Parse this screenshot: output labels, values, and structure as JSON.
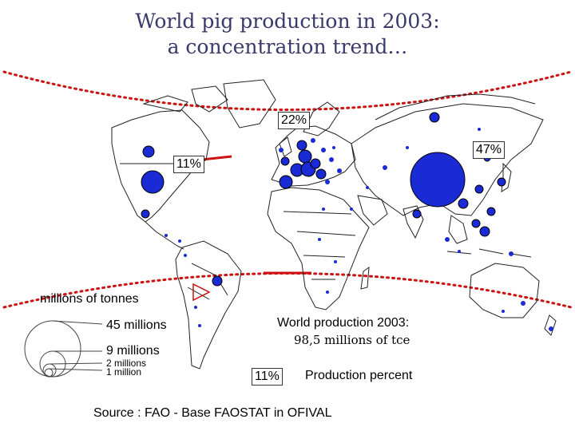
{
  "title_line1": "World pig production in 2003:",
  "title_line2": "a concentration trend…",
  "percent_labels": {
    "europe": "22%",
    "asia": "47%",
    "americas": "11%"
  },
  "legend": {
    "unit_label": "millions of tonnes",
    "size_45": "45 millions",
    "size_9": "9 millions",
    "size_2": "2 millions",
    "size_1": "1 million"
  },
  "world_production": {
    "heading": "World production 2003:",
    "value": "98,5 millions of tce"
  },
  "percent_legend": {
    "sample": "11%",
    "label": "Production percent"
  },
  "source": "Source : FAO - Base FAOSTAT in OFIVAL",
  "colors": {
    "bubble": "#1a2ad4",
    "dotted_line": "#cc1111",
    "title": "#3a3a6a"
  }
}
